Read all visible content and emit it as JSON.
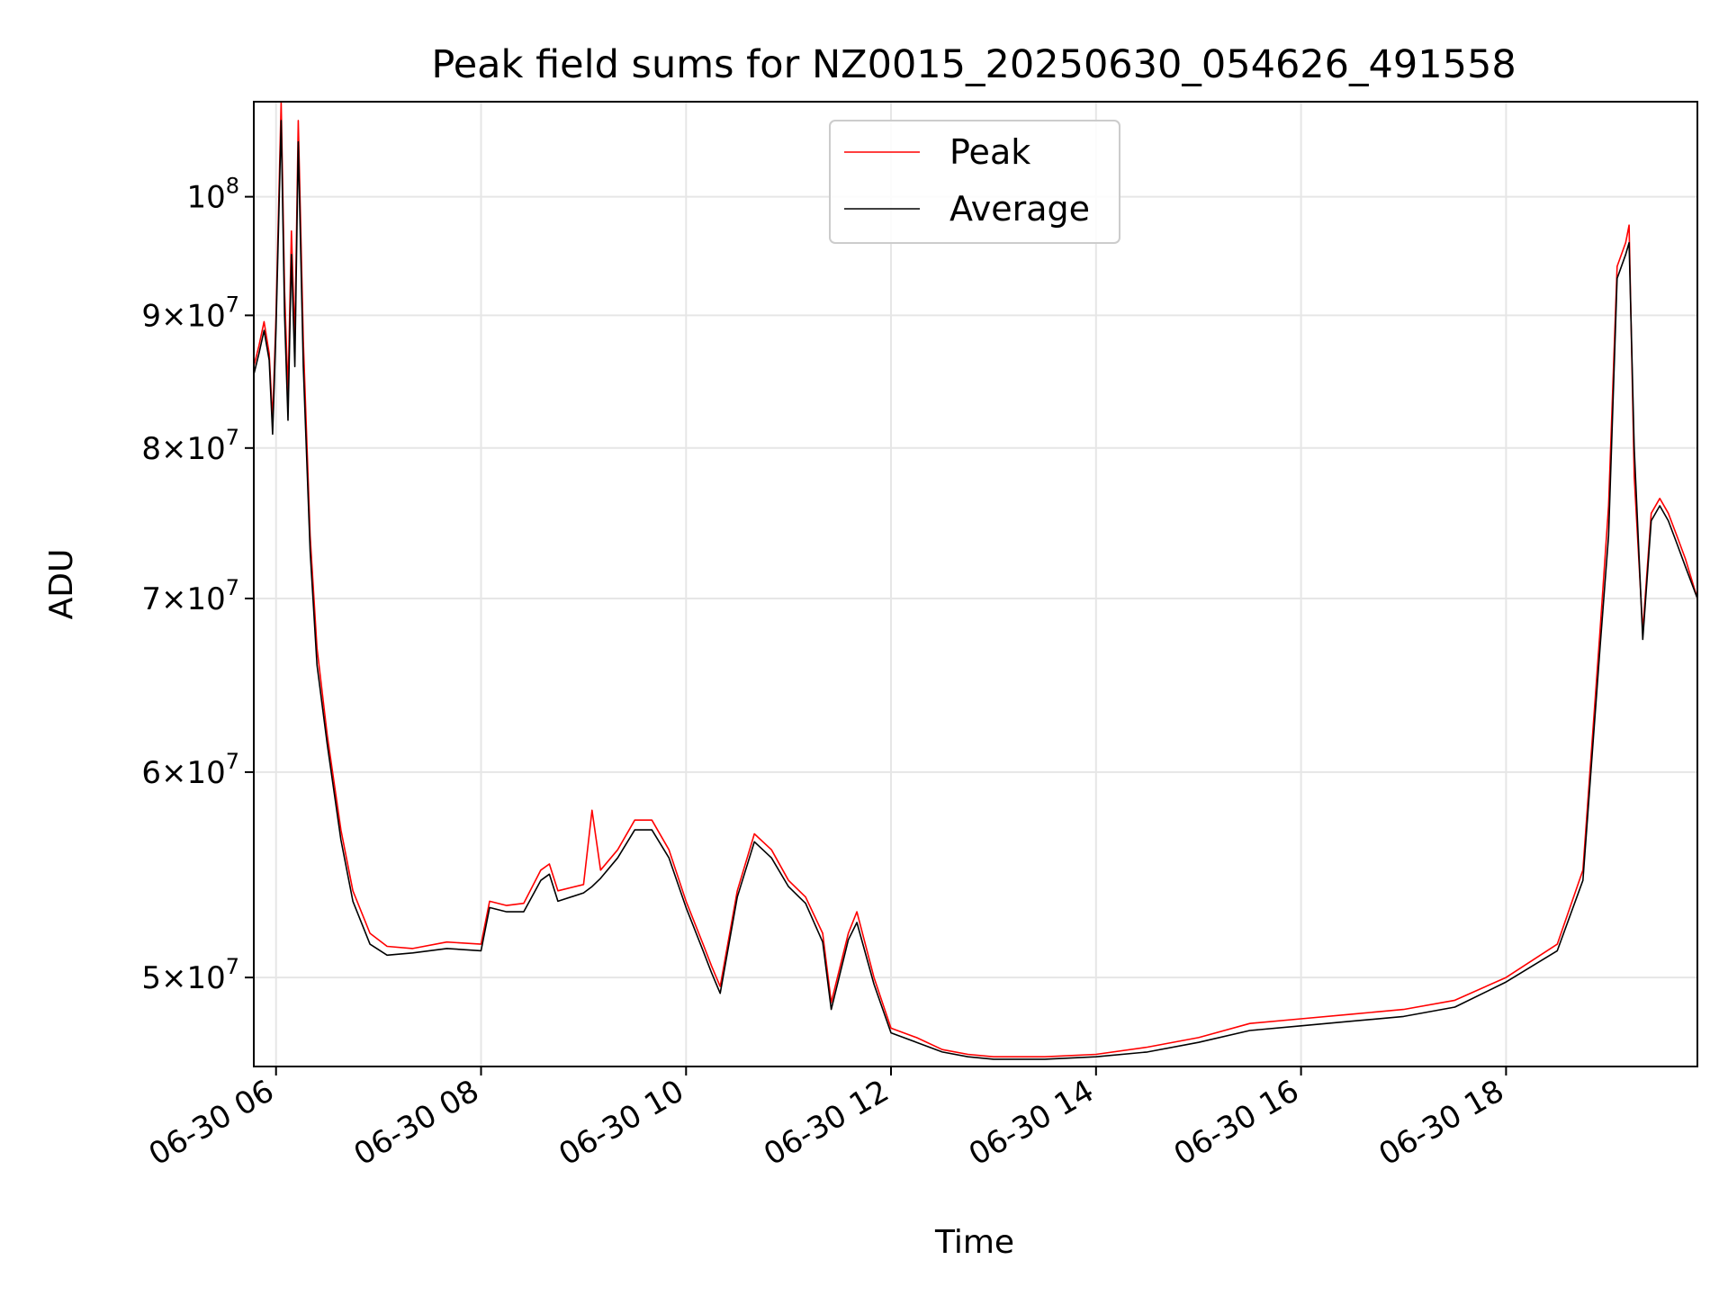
{
  "chart_data": {
    "type": "line",
    "title": "Peak field sums for NZ0015_20250630_054626_491558",
    "xlabel": "Time",
    "ylabel": "ADU",
    "y_scale": "log",
    "ylim": [
      46200000,
      108800000
    ],
    "xlim": [
      "06-30 05:47",
      "06-30 19:52"
    ],
    "grid": true,
    "legend_position": "top-center",
    "x_ticks": [
      {
        "time": "06:00",
        "label": "06-30 06"
      },
      {
        "time": "08:00",
        "label": "06-30 08"
      },
      {
        "time": "10:00",
        "label": "06-30 10"
      },
      {
        "time": "12:00",
        "label": "06-30 12"
      },
      {
        "time": "14:00",
        "label": "06-30 14"
      },
      {
        "time": "16:00",
        "label": "06-30 16"
      },
      {
        "time": "18:00",
        "label": "06-30 18"
      }
    ],
    "y_ticks": [
      {
        "value": 50000000,
        "base": "5",
        "exp": "7",
        "has_mantissa": true
      },
      {
        "value": 60000000,
        "base": "6",
        "exp": "7",
        "has_mantissa": true
      },
      {
        "value": 70000000,
        "base": "7",
        "exp": "7",
        "has_mantissa": true
      },
      {
        "value": 80000000,
        "base": "8",
        "exp": "7",
        "has_mantissa": true
      },
      {
        "value": 90000000,
        "base": "9",
        "exp": "7",
        "has_mantissa": true
      },
      {
        "value": 100000000,
        "base": "",
        "exp": "8",
        "has_mantissa": false
      }
    ],
    "colors": {
      "peak": "#ff0000",
      "average": "#000000",
      "grid": "#e6e6e6"
    },
    "series": [
      {
        "name": "Peak",
        "color": "#ff0000",
        "points": [
          [
            "05:47",
            86000000
          ],
          [
            "05:50",
            87600000
          ],
          [
            "05:53",
            89500000
          ],
          [
            "05:56",
            87000000
          ],
          [
            "05:58",
            82000000
          ],
          [
            "06:00",
            90000000
          ],
          [
            "06:03",
            108800000
          ],
          [
            "06:05",
            92000000
          ],
          [
            "06:07",
            84000000
          ],
          [
            "06:09",
            97000000
          ],
          [
            "06:11",
            88000000
          ],
          [
            "06:13",
            107000000
          ],
          [
            "06:16",
            88000000
          ],
          [
            "06:20",
            74000000
          ],
          [
            "06:24",
            67000000
          ],
          [
            "06:30",
            62000000
          ],
          [
            "06:38",
            57000000
          ],
          [
            "06:45",
            54000000
          ],
          [
            "06:55",
            52000000
          ],
          [
            "07:05",
            51400000
          ],
          [
            "07:20",
            51300000
          ],
          [
            "07:40",
            51600000
          ],
          [
            "08:00",
            51500000
          ],
          [
            "08:05",
            53500000
          ],
          [
            "08:15",
            53300000
          ],
          [
            "08:25",
            53400000
          ],
          [
            "08:35",
            55000000
          ],
          [
            "08:40",
            55300000
          ],
          [
            "08:45",
            54000000
          ],
          [
            "09:00",
            54300000
          ],
          [
            "09:05",
            58000000
          ],
          [
            "09:10",
            55000000
          ],
          [
            "09:20",
            56000000
          ],
          [
            "09:30",
            57500000
          ],
          [
            "09:40",
            57500000
          ],
          [
            "09:50",
            56000000
          ],
          [
            "10:00",
            53500000
          ],
          [
            "10:10",
            51500000
          ],
          [
            "10:15",
            50500000
          ],
          [
            "10:20",
            49600000
          ],
          [
            "10:30",
            54000000
          ],
          [
            "10:40",
            56800000
          ],
          [
            "10:50",
            56000000
          ],
          [
            "11:00",
            54500000
          ],
          [
            "11:10",
            53700000
          ],
          [
            "11:20",
            52000000
          ],
          [
            "11:25",
            48900000
          ],
          [
            "11:35",
            52000000
          ],
          [
            "11:40",
            53000000
          ],
          [
            "11:50",
            50000000
          ],
          [
            "12:00",
            47800000
          ],
          [
            "12:15",
            47400000
          ],
          [
            "12:30",
            46900000
          ],
          [
            "12:45",
            46700000
          ],
          [
            "13:00",
            46600000
          ],
          [
            "13:30",
            46600000
          ],
          [
            "14:00",
            46700000
          ],
          [
            "14:30",
            47000000
          ],
          [
            "15:00",
            47400000
          ],
          [
            "15:30",
            48000000
          ],
          [
            "16:00",
            48200000
          ],
          [
            "16:30",
            48400000
          ],
          [
            "17:00",
            48600000
          ],
          [
            "17:30",
            49000000
          ],
          [
            "18:00",
            50000000
          ],
          [
            "18:30",
            51500000
          ],
          [
            "18:45",
            55000000
          ],
          [
            "18:55",
            68000000
          ],
          [
            "19:00",
            76000000
          ],
          [
            "19:05",
            94000000
          ],
          [
            "19:10",
            96000000
          ],
          [
            "19:12",
            97500000
          ],
          [
            "19:15",
            78000000
          ],
          [
            "19:20",
            68000000
          ],
          [
            "19:25",
            75500000
          ],
          [
            "19:30",
            76500000
          ],
          [
            "19:35",
            75500000
          ],
          [
            "19:40",
            74000000
          ],
          [
            "19:45",
            72500000
          ],
          [
            "19:52",
            70000000
          ]
        ]
      },
      {
        "name": "Average",
        "color": "#000000",
        "points": [
          [
            "05:47",
            85400000
          ],
          [
            "05:50",
            87000000
          ],
          [
            "05:53",
            88800000
          ],
          [
            "05:56",
            86500000
          ],
          [
            "05:58",
            81000000
          ],
          [
            "06:00",
            89000000
          ],
          [
            "06:03",
            107000000
          ],
          [
            "06:05",
            90000000
          ],
          [
            "06:07",
            82000000
          ],
          [
            "06:09",
            95000000
          ],
          [
            "06:11",
            86000000
          ],
          [
            "06:13",
            105000000
          ],
          [
            "06:16",
            86000000
          ],
          [
            "06:20",
            73000000
          ],
          [
            "06:24",
            66000000
          ],
          [
            "06:30",
            61500000
          ],
          [
            "06:38",
            56500000
          ],
          [
            "06:45",
            53500000
          ],
          [
            "06:55",
            51500000
          ],
          [
            "07:05",
            51000000
          ],
          [
            "07:20",
            51100000
          ],
          [
            "07:40",
            51300000
          ],
          [
            "08:00",
            51200000
          ],
          [
            "08:05",
            53200000
          ],
          [
            "08:15",
            53000000
          ],
          [
            "08:25",
            53000000
          ],
          [
            "08:35",
            54500000
          ],
          [
            "08:40",
            54800000
          ],
          [
            "08:45",
            53500000
          ],
          [
            "09:00",
            53900000
          ],
          [
            "09:05",
            54200000
          ],
          [
            "09:10",
            54600000
          ],
          [
            "09:20",
            55600000
          ],
          [
            "09:30",
            57000000
          ],
          [
            "09:40",
            57000000
          ],
          [
            "09:50",
            55600000
          ],
          [
            "10:00",
            53200000
          ],
          [
            "10:10",
            51200000
          ],
          [
            "10:15",
            50200000
          ],
          [
            "10:20",
            49300000
          ],
          [
            "10:30",
            53700000
          ],
          [
            "10:40",
            56400000
          ],
          [
            "10:50",
            55600000
          ],
          [
            "11:00",
            54200000
          ],
          [
            "11:10",
            53400000
          ],
          [
            "11:20",
            51600000
          ],
          [
            "11:25",
            48600000
          ],
          [
            "11:35",
            51700000
          ],
          [
            "11:40",
            52500000
          ],
          [
            "11:50",
            49700000
          ],
          [
            "12:00",
            47600000
          ],
          [
            "12:15",
            47200000
          ],
          [
            "12:30",
            46800000
          ],
          [
            "12:45",
            46600000
          ],
          [
            "13:00",
            46500000
          ],
          [
            "13:30",
            46500000
          ],
          [
            "14:00",
            46600000
          ],
          [
            "14:30",
            46800000
          ],
          [
            "15:00",
            47200000
          ],
          [
            "15:30",
            47700000
          ],
          [
            "16:00",
            47900000
          ],
          [
            "16:30",
            48100000
          ],
          [
            "17:00",
            48300000
          ],
          [
            "17:30",
            48700000
          ],
          [
            "18:00",
            49800000
          ],
          [
            "18:30",
            51200000
          ],
          [
            "18:45",
            54500000
          ],
          [
            "18:55",
            67000000
          ],
          [
            "19:00",
            74000000
          ],
          [
            "19:05",
            93000000
          ],
          [
            "19:10",
            95000000
          ],
          [
            "19:12",
            96000000
          ],
          [
            "19:15",
            80000000
          ],
          [
            "19:20",
            67500000
          ],
          [
            "19:25",
            75000000
          ],
          [
            "19:30",
            76000000
          ],
          [
            "19:35",
            75000000
          ],
          [
            "19:40",
            73500000
          ],
          [
            "19:45",
            72000000
          ],
          [
            "19:52",
            70000000
          ]
        ]
      }
    ]
  }
}
